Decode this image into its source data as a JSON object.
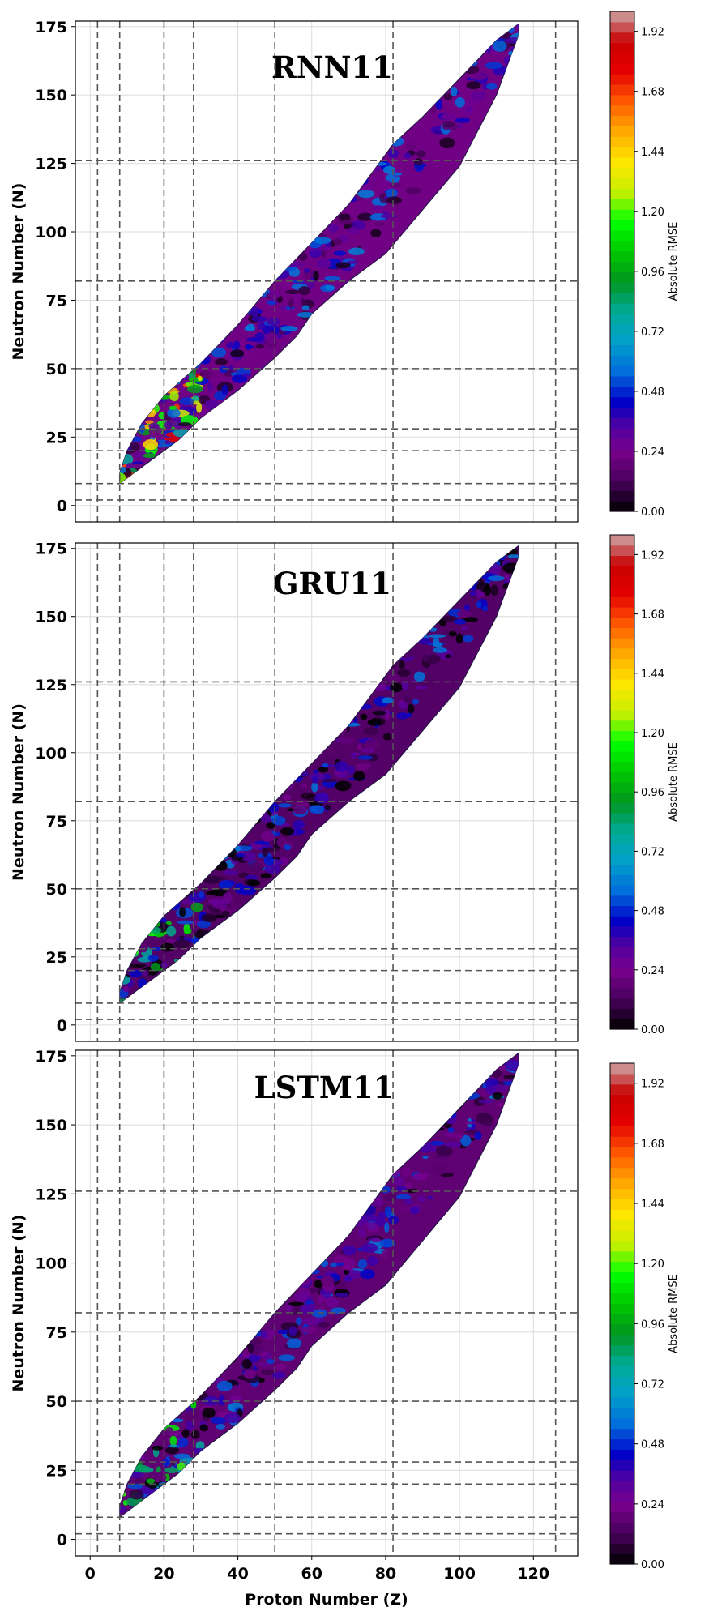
{
  "chart_data": [
    {
      "type": "heatmap",
      "title": "RNN11",
      "xlabel": "",
      "ylabel": "Neutron Number (N)",
      "xlim": [
        -4,
        132
      ],
      "ylim": [
        -6,
        177
      ],
      "xticks": [],
      "yticks": [
        0,
        25,
        50,
        75,
        100,
        125,
        150,
        175
      ],
      "magic_numbers_Z": [
        2,
        8,
        20,
        28,
        50,
        82,
        126
      ],
      "magic_numbers_N": [
        2,
        8,
        20,
        28,
        50,
        82,
        126
      ],
      "grid": true,
      "colorbar": {
        "label": "Absolute RMSE",
        "ticks": [
          0.0,
          0.24,
          0.48,
          0.72,
          0.96,
          1.2,
          1.44,
          1.68,
          1.92
        ],
        "tick_labels": [
          "0.00",
          "0.24",
          "0.48",
          "0.72",
          "0.96",
          "1.20",
          "1.44",
          "1.68",
          "1.92"
        ],
        "range": [
          0,
          2.0
        ],
        "colormap": "nipy_spectral"
      },
      "dominant_rmse": 0.22
    },
    {
      "type": "heatmap",
      "title": "GRU11",
      "xlabel": "",
      "ylabel": "Neutron Number (N)",
      "xlim": [
        -4,
        132
      ],
      "ylim": [
        -6,
        177
      ],
      "xticks": [],
      "yticks": [
        0,
        25,
        50,
        75,
        100,
        125,
        150,
        175
      ],
      "magic_numbers_Z": [
        2,
        8,
        20,
        28,
        50,
        82,
        126
      ],
      "magic_numbers_N": [
        2,
        8,
        20,
        28,
        50,
        82,
        126
      ],
      "grid": true,
      "colorbar": {
        "label": "Absolute RMSE",
        "ticks": [
          0.0,
          0.24,
          0.48,
          0.72,
          0.96,
          1.2,
          1.44,
          1.68,
          1.92
        ],
        "tick_labels": [
          "0.00",
          "0.24",
          "0.48",
          "0.72",
          "0.96",
          "1.20",
          "1.44",
          "1.68",
          "1.92"
        ],
        "range": [
          0,
          2.0
        ],
        "colormap": "nipy_spectral"
      },
      "dominant_rmse": 0.15
    },
    {
      "type": "heatmap",
      "title": "LSTM11",
      "xlabel": "Proton Number (Z)",
      "ylabel": "Neutron Number (N)",
      "xlim": [
        -4,
        132
      ],
      "ylim": [
        -6,
        177
      ],
      "xticks": [
        0,
        20,
        40,
        60,
        80,
        100,
        120
      ],
      "yticks": [
        0,
        25,
        50,
        75,
        100,
        125,
        150,
        175
      ],
      "magic_numbers_Z": [
        2,
        8,
        20,
        28,
        50,
        82,
        126
      ],
      "magic_numbers_N": [
        2,
        8,
        20,
        28,
        50,
        82,
        126
      ],
      "grid": true,
      "colorbar": {
        "label": "Absolute RMSE",
        "ticks": [
          0.0,
          0.24,
          0.48,
          0.72,
          0.96,
          1.2,
          1.44,
          1.68,
          1.92
        ],
        "tick_labels": [
          "0.00",
          "0.24",
          "0.48",
          "0.72",
          "0.96",
          "1.20",
          "1.44",
          "1.68",
          "1.92"
        ],
        "range": [
          0,
          2.0
        ],
        "colormap": "nipy_spectral"
      },
      "dominant_rmse": 0.18
    }
  ],
  "chart_shape": {
    "lower_edge_N_vs_Z": [
      [
        8,
        8
      ],
      [
        12,
        12
      ],
      [
        18,
        18
      ],
      [
        24,
        24
      ],
      [
        30,
        32
      ],
      [
        40,
        42
      ],
      [
        50,
        54
      ],
      [
        56,
        62
      ],
      [
        60,
        70
      ],
      [
        70,
        82
      ],
      [
        80,
        92
      ],
      [
        90,
        108
      ],
      [
        100,
        124
      ],
      [
        110,
        150
      ],
      [
        116,
        172
      ]
    ],
    "upper_edge_N_vs_Z": [
      [
        116,
        176
      ],
      [
        110,
        170
      ],
      [
        100,
        156
      ],
      [
        90,
        142
      ],
      [
        82,
        132
      ],
      [
        70,
        110
      ],
      [
        60,
        96
      ],
      [
        50,
        82
      ],
      [
        40,
        66
      ],
      [
        30,
        52
      ],
      [
        20,
        40
      ],
      [
        14,
        30
      ],
      [
        10,
        20
      ],
      [
        8,
        12
      ]
    ]
  }
}
